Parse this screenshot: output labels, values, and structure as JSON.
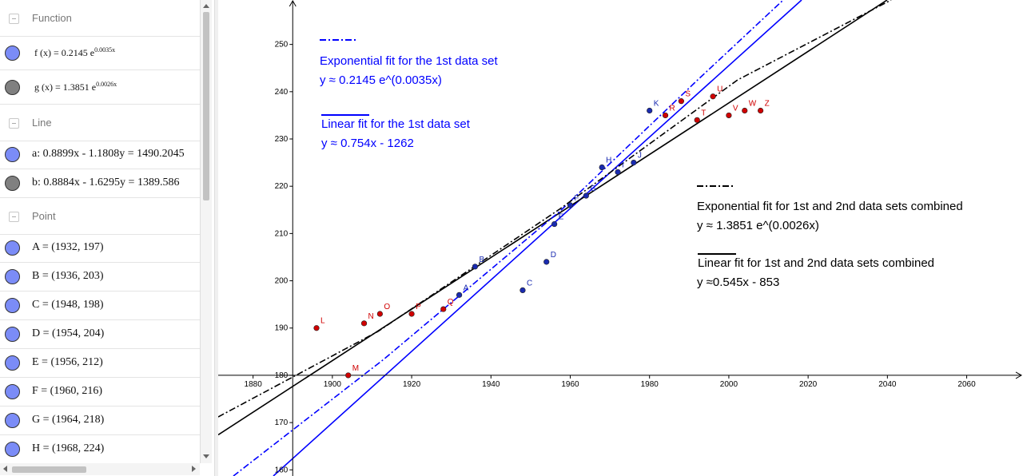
{
  "algebra": {
    "groups": [
      {
        "title": "Function",
        "items": [
          {
            "text": "f (x) = 0.2145 e",
            "exponent": "0.0035x",
            "color": "#7b8cf7"
          },
          {
            "text": "g (x) = 1.3851 e",
            "exponent": "0.0026x",
            "color": "#808080"
          }
        ]
      },
      {
        "title": "Line",
        "items": [
          {
            "text": "a: 0.8899x - 1.1808y = 1490.2045",
            "color": "#7b8cf7"
          },
          {
            "text": "b: 0.8884x - 1.6295y = 1389.586",
            "color": "#808080"
          }
        ]
      },
      {
        "title": "Point",
        "items": [
          {
            "text": "A = (1932, 197)",
            "color": "#7b8cf7"
          },
          {
            "text": "B = (1936, 203)",
            "color": "#7b8cf7"
          },
          {
            "text": "C = (1948, 198)",
            "color": "#7b8cf7"
          },
          {
            "text": "D = (1954, 204)",
            "color": "#7b8cf7"
          },
          {
            "text": "E = (1956, 212)",
            "color": "#7b8cf7"
          },
          {
            "text": "F = (1960, 216)",
            "color": "#7b8cf7"
          },
          {
            "text": "G = (1964, 218)",
            "color": "#7b8cf7"
          },
          {
            "text": "H = (1968, 224)",
            "color": "#7b8cf7"
          }
        ]
      }
    ]
  },
  "graphics": {
    "xlim": [
      1871.2,
      2074.2
    ],
    "ylim": [
      158.7,
      259.4
    ],
    "xticks": [
      1880,
      1900,
      1920,
      1940,
      1960,
      1980,
      2000,
      2020,
      2040,
      2060
    ],
    "yticks": [
      160,
      170,
      180,
      190,
      200,
      210,
      220,
      230,
      240,
      250
    ],
    "x_axis_at": 180,
    "y_axis_at": 1890,
    "points": [
      {
        "label": "A",
        "x": 1932,
        "y": 197,
        "color": "#1a2bb0"
      },
      {
        "label": "B",
        "x": 1936,
        "y": 203,
        "color": "#1a2bb0"
      },
      {
        "label": "C",
        "x": 1948,
        "y": 198,
        "color": "#1a2bb0"
      },
      {
        "label": "D",
        "x": 1954,
        "y": 204,
        "color": "#1a2bb0"
      },
      {
        "label": "E",
        "x": 1956,
        "y": 212,
        "color": "#1a2bb0"
      },
      {
        "label": "F",
        "x": 1960,
        "y": 216,
        "color": "#1a2bb0"
      },
      {
        "label": "G",
        "x": 1964,
        "y": 218,
        "color": "#1a2bb0"
      },
      {
        "label": "H",
        "x": 1968,
        "y": 224,
        "color": "#1a2bb0"
      },
      {
        "label": "I",
        "x": 1972,
        "y": 223,
        "color": "#1a2bb0"
      },
      {
        "label": "J",
        "x": 1976,
        "y": 225,
        "color": "#1a2bb0"
      },
      {
        "label": "K",
        "x": 1980,
        "y": 236,
        "color": "#1a2bb0"
      },
      {
        "label": "L",
        "x": 1896,
        "y": 190,
        "color": "#d00000"
      },
      {
        "label": "M",
        "x": 1904,
        "y": 180,
        "color": "#d00000"
      },
      {
        "label": "N",
        "x": 1908,
        "y": 191,
        "color": "#d00000"
      },
      {
        "label": "O",
        "x": 1912,
        "y": 193,
        "color": "#d00000"
      },
      {
        "label": "P",
        "x": 1920,
        "y": 193,
        "color": "#d00000"
      },
      {
        "label": "Q",
        "x": 1928,
        "y": 194,
        "color": "#d00000"
      },
      {
        "label": "R",
        "x": 1984,
        "y": 235,
        "color": "#d00000"
      },
      {
        "label": "S",
        "x": 1988,
        "y": 238,
        "color": "#d00000"
      },
      {
        "label": "T",
        "x": 1992,
        "y": 234,
        "color": "#d00000"
      },
      {
        "label": "U",
        "x": 1996,
        "y": 239,
        "color": "#d00000"
      },
      {
        "label": "V",
        "x": 2000,
        "y": 235,
        "color": "#d00000"
      },
      {
        "label": "W",
        "x": 2004,
        "y": 236,
        "color": "#d00000"
      },
      {
        "label": "Z",
        "x": 2008,
        "y": 236,
        "color": "#d00000"
      }
    ],
    "annotations": [
      {
        "text": "Exponential fit for the 1st data set",
        "color": "#0000ff"
      },
      {
        "text": "y  ≈ 0.2145 e^(0.0035x)",
        "color": "#0000ff"
      },
      {
        "text": "Linear fit for the 1st data set",
        "color": "#0000ff"
      },
      {
        "text": "y ≈ 0.754x - 1262",
        "color": "#0000ff"
      },
      {
        "text": "Exponential fit for 1st and 2nd data sets combined",
        "color": "#000000"
      },
      {
        "text": "y ≈ 1.3851 e^(0.0026x)",
        "color": "#000000"
      },
      {
        "text": "Linear fit for 1st and 2nd data sets combined",
        "color": "#000000"
      },
      {
        "text": "y ≈0.545x - 853",
        "color": "#000000"
      }
    ]
  }
}
